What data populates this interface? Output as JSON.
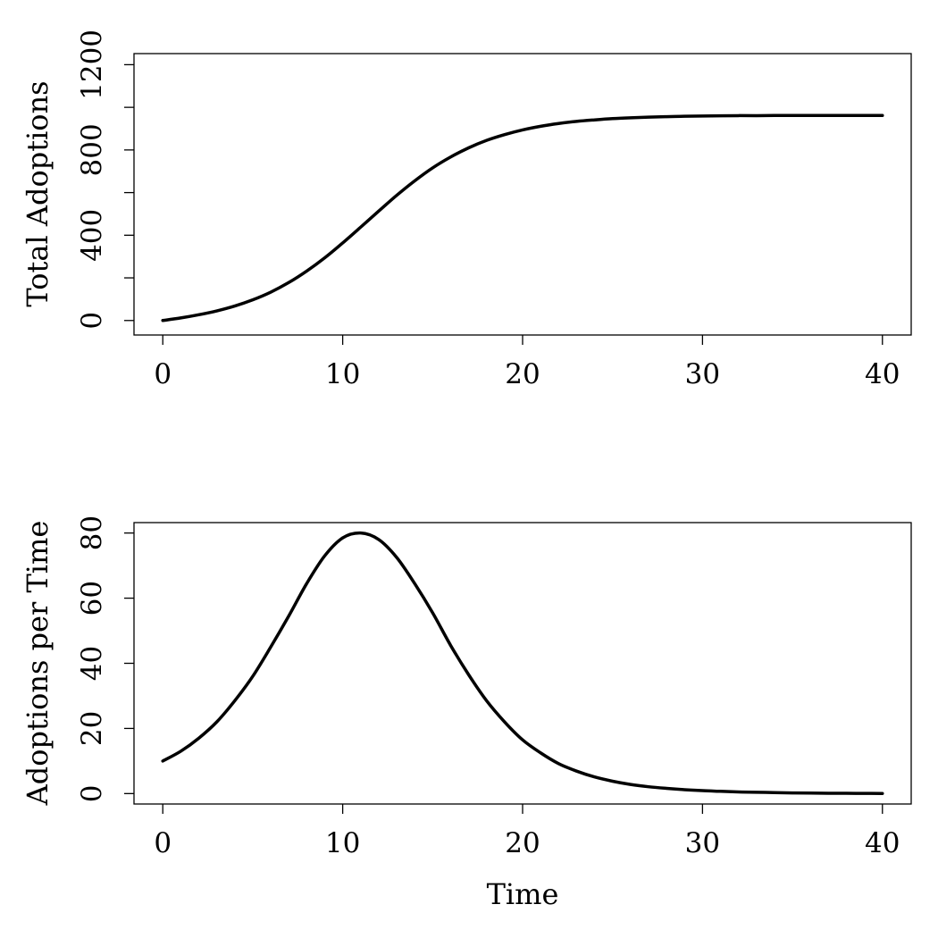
{
  "chart_data": [
    {
      "type": "line",
      "title": "",
      "xlabel": "",
      "ylabel": "Total Adoptions",
      "xlim": [
        -1.6,
        41.6
      ],
      "ylim": [
        -68,
        1252
      ],
      "x_ticks": [
        0,
        10,
        20,
        30,
        40
      ],
      "y_ticks": [
        0,
        200,
        400,
        600,
        800,
        1000,
        1200
      ],
      "y_tick_labels": [
        "0",
        "",
        "400",
        "",
        "800",
        "",
        "1200"
      ],
      "series": [
        {
          "name": "Total Adoptions",
          "x": [
            0,
            1,
            2,
            3,
            4,
            5,
            6,
            7,
            8,
            9,
            10,
            11,
            12,
            13,
            14,
            15,
            16,
            17,
            18,
            19,
            20,
            21,
            22,
            23,
            24,
            25,
            26,
            27,
            28,
            29,
            30,
            31,
            32,
            33,
            34,
            35,
            36,
            37,
            38,
            39,
            40
          ],
          "y": [
            0,
            12,
            27,
            45,
            68,
            97,
            133,
            178,
            232,
            294,
            364,
            438,
            513,
            587,
            655,
            716,
            767,
            810,
            845,
            872,
            894,
            911,
            924,
            934,
            941,
            947,
            951,
            954,
            956,
            958,
            959,
            960,
            961,
            961,
            962,
            962,
            962,
            962,
            962,
            962,
            962
          ]
        }
      ]
    },
    {
      "type": "line",
      "title": "",
      "xlabel": "Time",
      "ylabel": "Adoptions per Time",
      "xlim": [
        -1.6,
        41.6
      ],
      "ylim": [
        -3.2,
        83.2
      ],
      "x_ticks": [
        0,
        10,
        20,
        30,
        40
      ],
      "y_ticks": [
        0,
        20,
        40,
        60,
        80
      ],
      "y_tick_labels": [
        "0",
        "20",
        "40",
        "60",
        "80"
      ],
      "series": [
        {
          "name": "Adoptions per Time",
          "x": [
            0,
            1,
            2,
            3,
            4,
            5,
            6,
            7,
            8,
            9,
            10,
            11,
            12,
            13,
            14,
            15,
            16,
            17,
            18,
            19,
            20,
            21,
            22,
            23,
            24,
            25,
            26,
            27,
            28,
            29,
            30,
            31,
            32,
            33,
            34,
            35,
            36,
            37,
            38,
            39,
            40
          ],
          "y": [
            10,
            13,
            17,
            22,
            28.5,
            36,
            45,
            54.5,
            64.5,
            73,
            78.5,
            80,
            78,
            72.5,
            64.5,
            55.5,
            45.5,
            36.5,
            28.5,
            22,
            16.5,
            12.5,
            9.2,
            6.9,
            5.1,
            3.8,
            2.8,
            2.1,
            1.6,
            1.2,
            0.9,
            0.7,
            0.5,
            0.4,
            0.3,
            0.2,
            0.15,
            0.1,
            0.08,
            0.05,
            0.03
          ]
        }
      ]
    }
  ]
}
